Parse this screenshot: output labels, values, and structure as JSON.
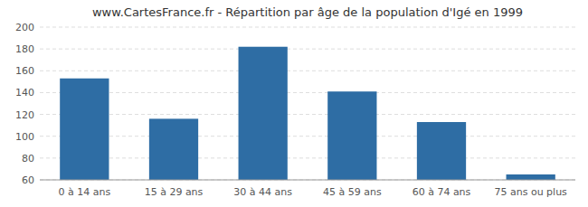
{
  "chart_data": {
    "type": "bar",
    "title": "www.CartesFrance.fr - Répartition par âge de la population d'Igé en 1999",
    "categories": [
      "0 à 14 ans",
      "15 à 29 ans",
      "30 à 44 ans",
      "45 à 59 ans",
      "60 à 74 ans",
      "75 ans ou plus"
    ],
    "values": [
      153,
      116,
      182,
      141,
      113,
      65
    ],
    "color": "#2e6da4",
    "ylim": [
      60,
      200
    ],
    "yticks": [
      60,
      80,
      100,
      120,
      140,
      160,
      180,
      200
    ],
    "grid": true
  }
}
